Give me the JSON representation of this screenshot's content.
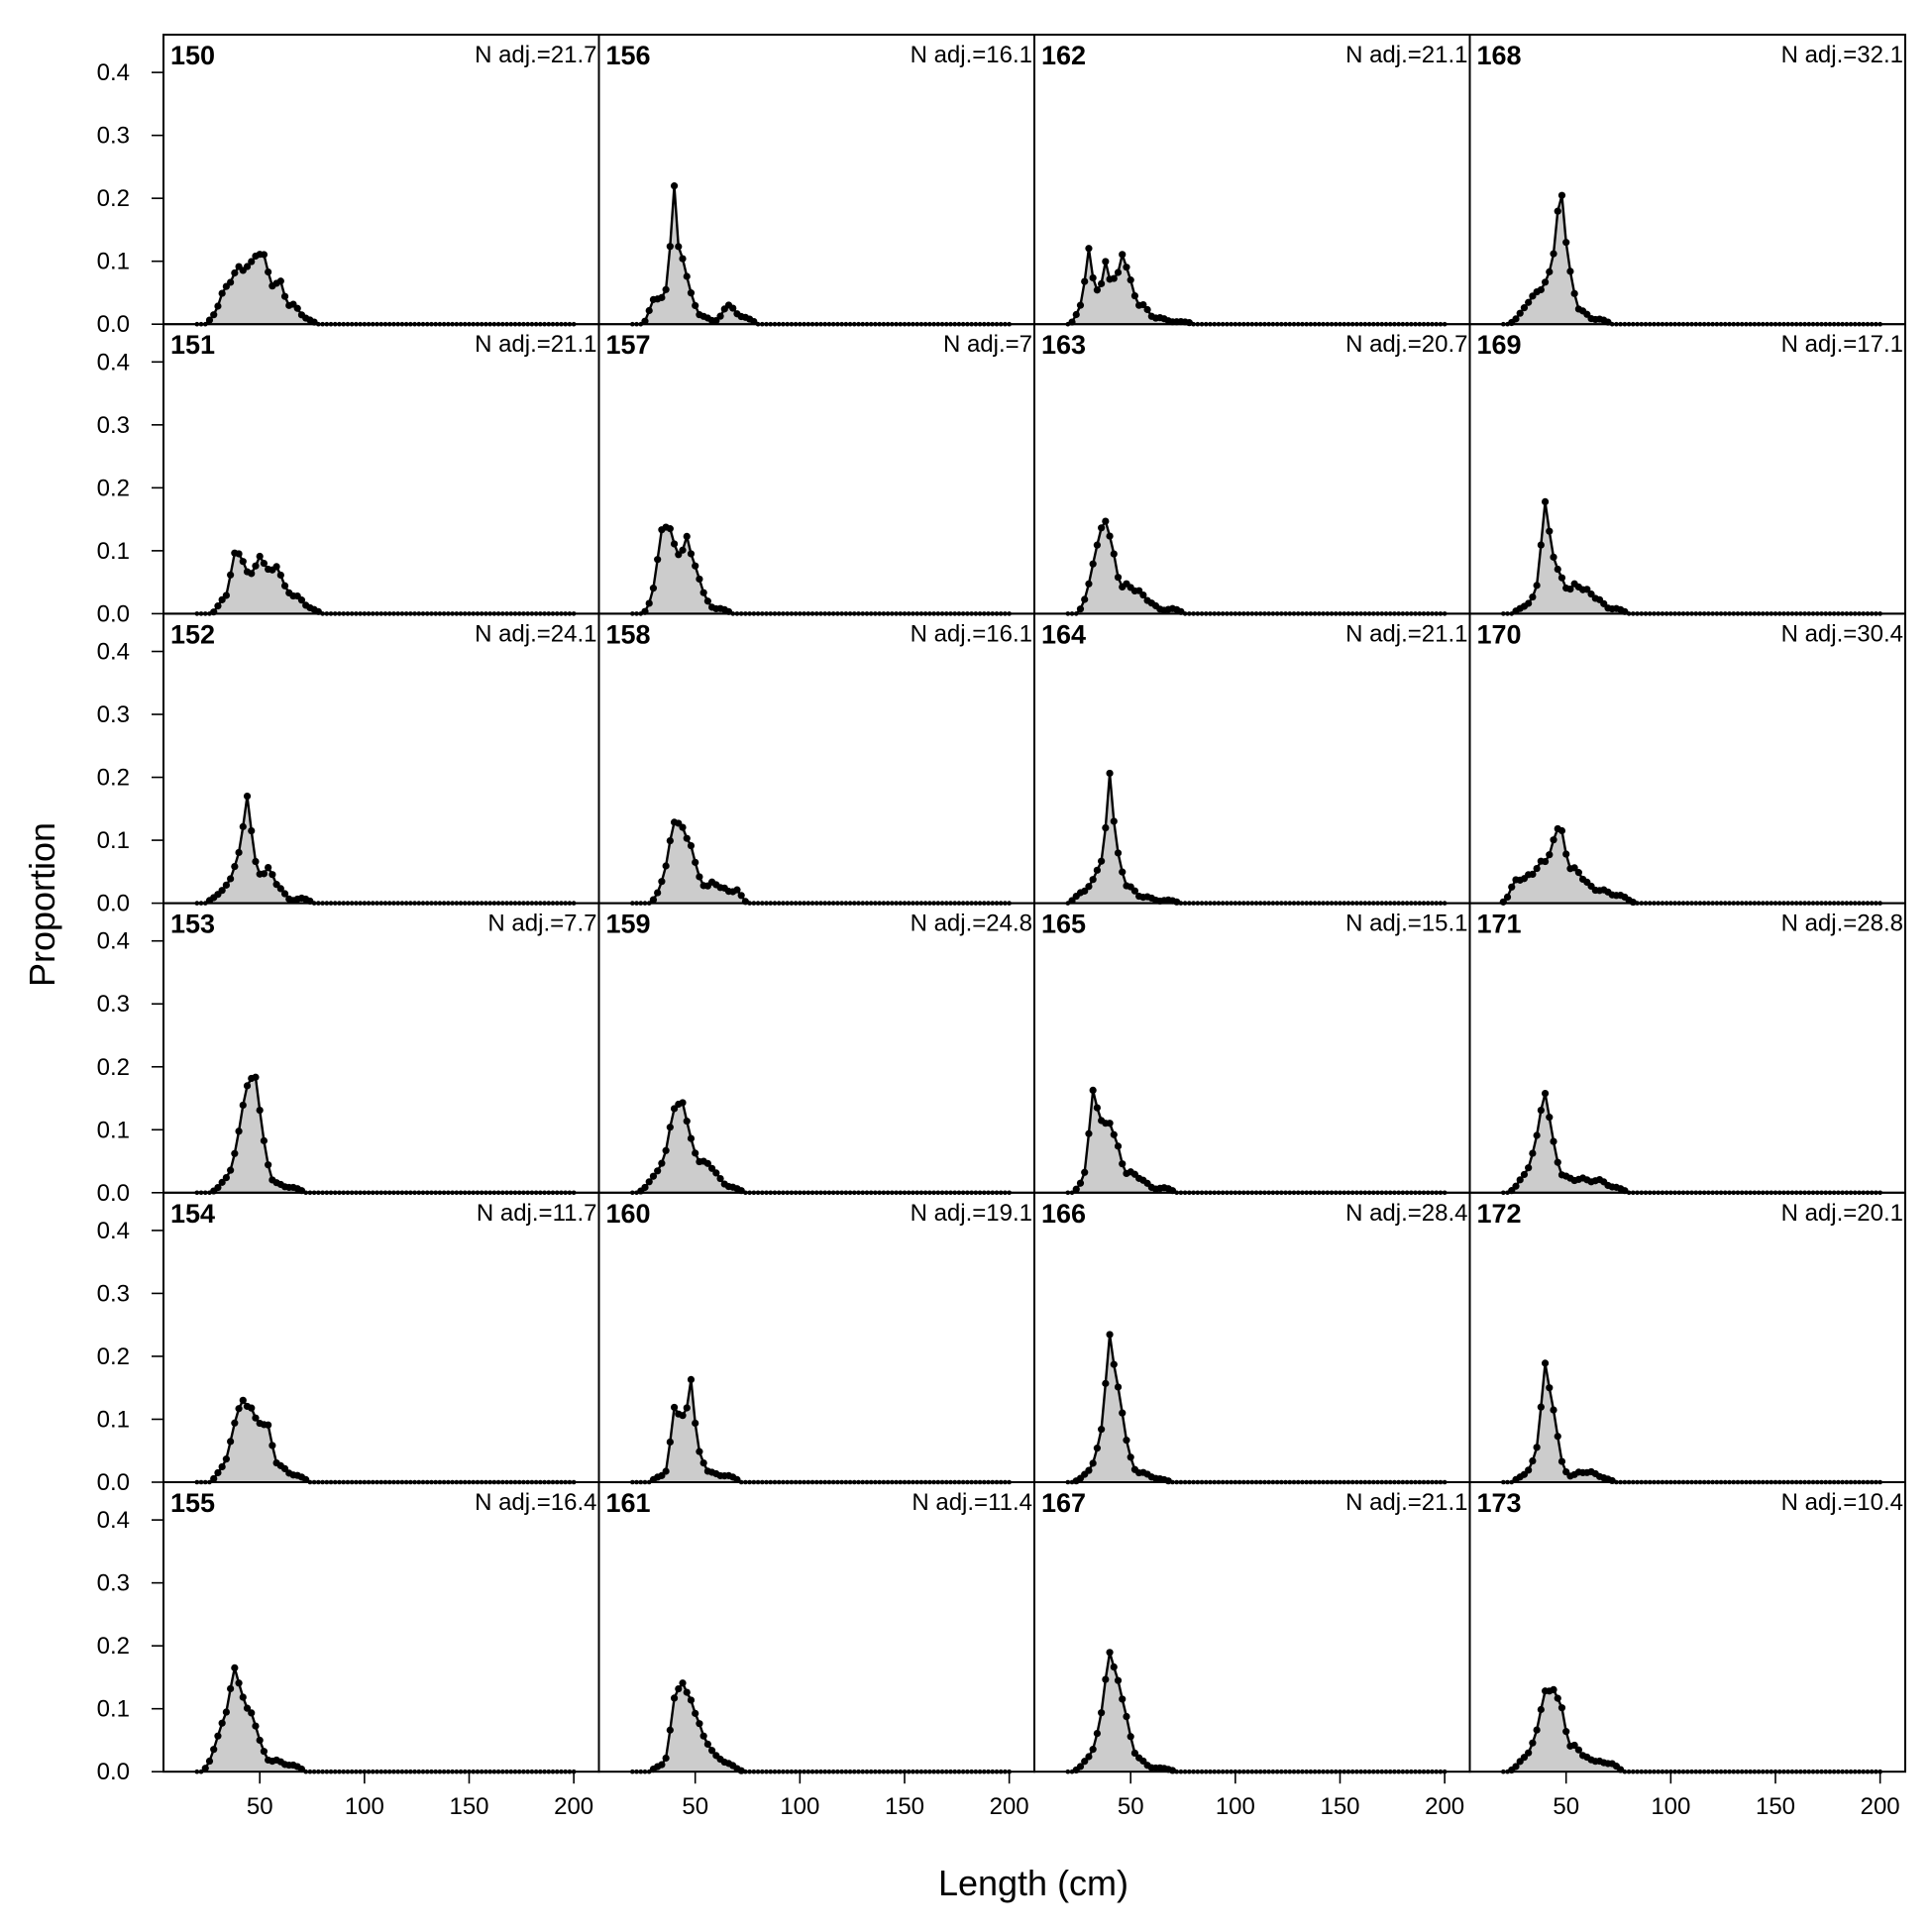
{
  "chart_data": {
    "type": "area",
    "xlabel": "Length (cm)",
    "ylabel": "Proportion",
    "xlim": [
      4,
      212
    ],
    "ylim": [
      0,
      0.46
    ],
    "x_ticks": [
      50,
      100,
      150,
      200
    ],
    "y_ticks": [
      0.0,
      0.1,
      0.2,
      0.3,
      0.4
    ],
    "y_tick_labels": [
      "0.0",
      "0.1",
      "0.2",
      "0.3",
      "0.4"
    ],
    "grid": false,
    "legend": "none",
    "layout": {
      "columns": 4,
      "rows": 6,
      "order": "column-major"
    },
    "fill_color": "#cccccc",
    "line_color": "#000000",
    "bin_start": 20,
    "bin_width": 2,
    "bin_end": 200,
    "panels": [
      {
        "id": "150",
        "n_adj": "N adj.=21.7",
        "peaks": [
          [
            28,
            0.01,
            2
          ],
          [
            32,
            0.025,
            2
          ],
          [
            36,
            0.055,
            3
          ],
          [
            40,
            0.06,
            2
          ],
          [
            44,
            0.065,
            2
          ],
          [
            48,
            0.088,
            2.2
          ],
          [
            52,
            0.082,
            2
          ],
          [
            56,
            0.042,
            2.5
          ],
          [
            60,
            0.055,
            2
          ],
          [
            66,
            0.03,
            2.5
          ],
          [
            72,
            0.008,
            3
          ]
        ]
      },
      {
        "id": "151",
        "n_adj": "N adj.=21.1",
        "peaks": [
          [
            32,
            0.02,
            2
          ],
          [
            38,
            0.088,
            2.2
          ],
          [
            42,
            0.06,
            2
          ],
          [
            46,
            0.045,
            2
          ],
          [
            50,
            0.078,
            2
          ],
          [
            54,
            0.052,
            2
          ],
          [
            58,
            0.058,
            2
          ],
          [
            62,
            0.035,
            2.5
          ],
          [
            68,
            0.025,
            2.5
          ],
          [
            74,
            0.008,
            3
          ]
        ]
      },
      {
        "id": "152",
        "n_adj": "N adj.=24.1",
        "peaks": [
          [
            30,
            0.01,
            3
          ],
          [
            36,
            0.03,
            3
          ],
          [
            40,
            0.055,
            2
          ],
          [
            44,
            0.155,
            1.8
          ],
          [
            48,
            0.05,
            2
          ],
          [
            54,
            0.055,
            2.5
          ],
          [
            60,
            0.02,
            2.5
          ],
          [
            70,
            0.008,
            3
          ]
        ]
      },
      {
        "id": "153",
        "n_adj": "N adj.=7.7",
        "peaks": [
          [
            34,
            0.02,
            3
          ],
          [
            40,
            0.07,
            2.5
          ],
          [
            44,
            0.13,
            2.2
          ],
          [
            48,
            0.15,
            2
          ],
          [
            52,
            0.06,
            2
          ],
          [
            58,
            0.015,
            3
          ],
          [
            66,
            0.008,
            3
          ]
        ]
      },
      {
        "id": "154",
        "n_adj": "N adj.=11.7",
        "peaks": [
          [
            32,
            0.02,
            2.5
          ],
          [
            38,
            0.08,
            2.5
          ],
          [
            42,
            0.095,
            2
          ],
          [
            46,
            0.095,
            2
          ],
          [
            50,
            0.07,
            2
          ],
          [
            54,
            0.078,
            2
          ],
          [
            60,
            0.025,
            3
          ],
          [
            68,
            0.01,
            3
          ]
        ]
      },
      {
        "id": "155",
        "n_adj": "N adj.=16.4",
        "peaks": [
          [
            30,
            0.04,
            3
          ],
          [
            34,
            0.06,
            2.5
          ],
          [
            38,
            0.135,
            2
          ],
          [
            42,
            0.09,
            2
          ],
          [
            46,
            0.07,
            2
          ],
          [
            50,
            0.04,
            2.5
          ],
          [
            58,
            0.018,
            3
          ],
          [
            66,
            0.01,
            3
          ]
        ]
      },
      {
        "id": "156",
        "n_adj": "N adj.=16.1",
        "peaks": [
          [
            30,
            0.035,
            2
          ],
          [
            34,
            0.03,
            2
          ],
          [
            38,
            0.055,
            2
          ],
          [
            40,
            0.178,
            1.4
          ],
          [
            44,
            0.095,
            1.8
          ],
          [
            48,
            0.04,
            2
          ],
          [
            54,
            0.012,
            3
          ],
          [
            66,
            0.03,
            3
          ],
          [
            74,
            0.01,
            3
          ]
        ]
      },
      {
        "id": "157",
        "n_adj": "N adj.=7",
        "peaks": [
          [
            30,
            0.025,
            2
          ],
          [
            34,
            0.115,
            2
          ],
          [
            38,
            0.11,
            2
          ],
          [
            42,
            0.07,
            2
          ],
          [
            46,
            0.105,
            1.8
          ],
          [
            50,
            0.06,
            2
          ],
          [
            54,
            0.025,
            2.5
          ],
          [
            62,
            0.008,
            3
          ]
        ]
      },
      {
        "id": "158",
        "n_adj": "N adj.=16.1",
        "peaks": [
          [
            36,
            0.04,
            3
          ],
          [
            40,
            0.1,
            2.2
          ],
          [
            44,
            0.09,
            2
          ],
          [
            48,
            0.075,
            2
          ],
          [
            52,
            0.03,
            2
          ],
          [
            58,
            0.032,
            2.5
          ],
          [
            64,
            0.022,
            2.5
          ],
          [
            70,
            0.02,
            2
          ]
        ]
      },
      {
        "id": "159",
        "n_adj": "N adj.=24.8",
        "peaks": [
          [
            30,
            0.02,
            3
          ],
          [
            36,
            0.045,
            3
          ],
          [
            40,
            0.1,
            2.2
          ],
          [
            44,
            0.11,
            2
          ],
          [
            48,
            0.065,
            2.2
          ],
          [
            54,
            0.045,
            3
          ],
          [
            60,
            0.025,
            3
          ],
          [
            68,
            0.008,
            3
          ]
        ]
      },
      {
        "id": "160",
        "n_adj": "N adj.=19.1",
        "peaks": [
          [
            34,
            0.01,
            3
          ],
          [
            40,
            0.11,
            1.8
          ],
          [
            44,
            0.09,
            1.8
          ],
          [
            48,
            0.15,
            1.6
          ],
          [
            52,
            0.04,
            2
          ],
          [
            58,
            0.015,
            3
          ],
          [
            66,
            0.01,
            3
          ]
        ]
      },
      {
        "id": "161",
        "n_adj": "N adj.=11.4",
        "peaks": [
          [
            34,
            0.01,
            3
          ],
          [
            40,
            0.1,
            2
          ],
          [
            44,
            0.115,
            2
          ],
          [
            48,
            0.09,
            2
          ],
          [
            52,
            0.06,
            2
          ],
          [
            56,
            0.03,
            2
          ],
          [
            60,
            0.02,
            2.5
          ],
          [
            66,
            0.012,
            3
          ]
        ]
      },
      {
        "id": "162",
        "n_adj": "N adj.=21.1",
        "peaks": [
          [
            26,
            0.025,
            2
          ],
          [
            30,
            0.115,
            1.6
          ],
          [
            34,
            0.045,
            1.6
          ],
          [
            38,
            0.095,
            1.6
          ],
          [
            42,
            0.06,
            1.6
          ],
          [
            46,
            0.1,
            1.8
          ],
          [
            50,
            0.06,
            2
          ],
          [
            56,
            0.03,
            2.5
          ],
          [
            64,
            0.01,
            3
          ],
          [
            74,
            0.004,
            4
          ]
        ]
      },
      {
        "id": "163",
        "n_adj": "N adj.=20.7",
        "peaks": [
          [
            30,
            0.025,
            2.5
          ],
          [
            34,
            0.08,
            2.5
          ],
          [
            38,
            0.115,
            2.2
          ],
          [
            42,
            0.07,
            2
          ],
          [
            48,
            0.045,
            2.5
          ],
          [
            54,
            0.032,
            2.5
          ],
          [
            60,
            0.015,
            3
          ],
          [
            70,
            0.008,
            3
          ]
        ]
      },
      {
        "id": "164",
        "n_adj": "N adj.=21.1",
        "peaks": [
          [
            26,
            0.015,
            2.5
          ],
          [
            32,
            0.03,
            2.5
          ],
          [
            36,
            0.05,
            2
          ],
          [
            40,
            0.19,
            1.6
          ],
          [
            44,
            0.07,
            2
          ],
          [
            50,
            0.025,
            2.5
          ],
          [
            58,
            0.01,
            3
          ],
          [
            68,
            0.005,
            3
          ]
        ]
      },
      {
        "id": "165",
        "n_adj": "N adj.=15.1",
        "peaks": [
          [
            28,
            0.02,
            2.5
          ],
          [
            32,
            0.145,
            1.8
          ],
          [
            36,
            0.09,
            2
          ],
          [
            40,
            0.09,
            2
          ],
          [
            44,
            0.06,
            2
          ],
          [
            50,
            0.03,
            2.5
          ],
          [
            56,
            0.018,
            3
          ],
          [
            66,
            0.008,
            3
          ]
        ]
      },
      {
        "id": "166",
        "n_adj": "N adj.=28.4",
        "peaks": [
          [
            30,
            0.015,
            3
          ],
          [
            36,
            0.065,
            2.5
          ],
          [
            40,
            0.2,
            1.8
          ],
          [
            44,
            0.12,
            2
          ],
          [
            48,
            0.05,
            2.5
          ],
          [
            56,
            0.015,
            3
          ],
          [
            64,
            0.005,
            3
          ]
        ]
      },
      {
        "id": "167",
        "n_adj": "N adj.=21.1",
        "peaks": [
          [
            30,
            0.02,
            3
          ],
          [
            36,
            0.07,
            2.5
          ],
          [
            40,
            0.155,
            2
          ],
          [
            44,
            0.11,
            2
          ],
          [
            48,
            0.07,
            2.2
          ],
          [
            54,
            0.02,
            3
          ],
          [
            64,
            0.006,
            4
          ]
        ]
      },
      {
        "id": "168",
        "n_adj": "N adj.=32.1",
        "peaks": [
          [
            30,
            0.02,
            3
          ],
          [
            36,
            0.045,
            3
          ],
          [
            42,
            0.065,
            2.5
          ],
          [
            46,
            0.085,
            2
          ],
          [
            48,
            0.14,
            1.8
          ],
          [
            52,
            0.07,
            2
          ],
          [
            58,
            0.02,
            2.5
          ],
          [
            66,
            0.008,
            3
          ]
        ]
      },
      {
        "id": "169",
        "n_adj": "N adj.=17.1",
        "peaks": [
          [
            30,
            0.01,
            3
          ],
          [
            36,
            0.03,
            2.5
          ],
          [
            40,
            0.16,
            1.8
          ],
          [
            44,
            0.07,
            2
          ],
          [
            48,
            0.045,
            2
          ],
          [
            54,
            0.045,
            2.5
          ],
          [
            60,
            0.035,
            2.5
          ],
          [
            66,
            0.02,
            2.5
          ],
          [
            74,
            0.008,
            3
          ]
        ]
      },
      {
        "id": "170",
        "n_adj": "N adj.=30.4",
        "peaks": [
          [
            26,
            0.035,
            2.5
          ],
          [
            32,
            0.04,
            2.5
          ],
          [
            38,
            0.06,
            2.5
          ],
          [
            44,
            0.08,
            2.5
          ],
          [
            48,
            0.09,
            2.2
          ],
          [
            54,
            0.05,
            2.5
          ],
          [
            60,
            0.03,
            3
          ],
          [
            68,
            0.02,
            3
          ],
          [
            76,
            0.012,
            3
          ]
        ]
      },
      {
        "id": "171",
        "n_adj": "N adj.=28.8",
        "peaks": [
          [
            30,
            0.025,
            3
          ],
          [
            36,
            0.07,
            2.5
          ],
          [
            40,
            0.13,
            2
          ],
          [
            44,
            0.06,
            2
          ],
          [
            50,
            0.025,
            3
          ],
          [
            58,
            0.022,
            3
          ],
          [
            66,
            0.02,
            3
          ],
          [
            74,
            0.008,
            3
          ]
        ]
      },
      {
        "id": "172",
        "n_adj": "N adj.=20.1",
        "peaks": [
          [
            30,
            0.01,
            3
          ],
          [
            36,
            0.04,
            2.5
          ],
          [
            40,
            0.165,
            1.8
          ],
          [
            44,
            0.095,
            2
          ],
          [
            48,
            0.02,
            2.5
          ],
          [
            56,
            0.015,
            2.5
          ],
          [
            62,
            0.015,
            2.5
          ],
          [
            68,
            0.006,
            3
          ]
        ]
      },
      {
        "id": "173",
        "n_adj": "N adj.=10.4",
        "peaks": [
          [
            30,
            0.02,
            3
          ],
          [
            36,
            0.05,
            2.5
          ],
          [
            40,
            0.1,
            2
          ],
          [
            44,
            0.105,
            2
          ],
          [
            48,
            0.085,
            2
          ],
          [
            54,
            0.04,
            2.5
          ],
          [
            60,
            0.02,
            2.5
          ],
          [
            66,
            0.015,
            2.5
          ],
          [
            72,
            0.012,
            2.5
          ]
        ]
      }
    ]
  }
}
